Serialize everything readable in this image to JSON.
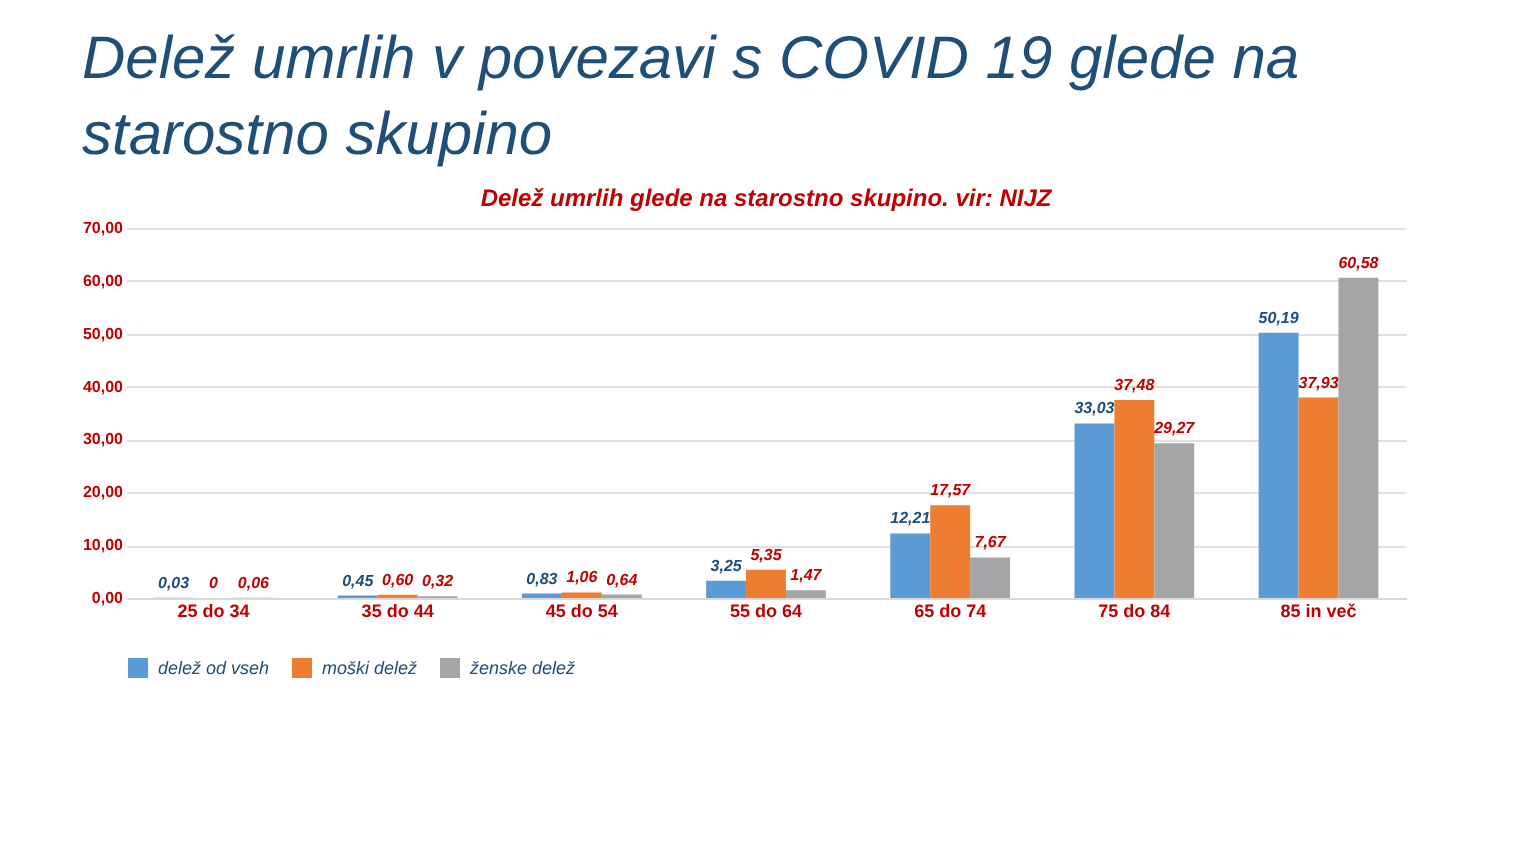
{
  "chart_data": {
    "type": "bar",
    "title": "Delež umrlih v povezavi s COVID 19 glede na starostno skupino",
    "subtitle": "Delež umrlih glede na starostno skupino. vir: NIJZ",
    "categories": [
      "25 do 34",
      "35 do 44",
      "45 do 54",
      "55 do 64",
      "65 do 74",
      "75 do 84",
      "85 in več"
    ],
    "series": [
      {
        "name": "delež od vseh",
        "color": "#5b9bd5",
        "values": [
          0.03,
          0.45,
          0.83,
          3.25,
          12.21,
          33.03,
          50.19
        ],
        "value_labels": [
          "0,03",
          "0,45",
          "0,83",
          "3,25",
          "12,21",
          "33,03",
          "50,19"
        ]
      },
      {
        "name": "moški delež",
        "color": "#ed7d31",
        "values": [
          0,
          0.6,
          1.06,
          5.35,
          17.57,
          37.48,
          37.93
        ],
        "value_labels": [
          "0",
          "0,60",
          "1,06",
          "5,35",
          "17,57",
          "37,48",
          "37,93"
        ]
      },
      {
        "name": "ženske delež",
        "color": "#a5a5a5",
        "values": [
          0.06,
          0.32,
          0.64,
          1.47,
          7.67,
          29.27,
          60.58
        ],
        "value_labels": [
          "0,06",
          "0,32",
          "0,64",
          "1,47",
          "7,67",
          "29,27",
          "60,58"
        ]
      }
    ],
    "ylim": [
      0,
      70
    ],
    "yticks": [
      {
        "value": 0,
        "label": "0,00"
      },
      {
        "value": 10,
        "label": "10,00"
      },
      {
        "value": 20,
        "label": "20,00"
      },
      {
        "value": 30,
        "label": "30,00"
      },
      {
        "value": 40,
        "label": "40,00"
      },
      {
        "value": 50,
        "label": "50,00"
      },
      {
        "value": 60,
        "label": "60,00"
      },
      {
        "value": 70,
        "label": "70,00"
      }
    ],
    "grid": "y",
    "legend": "bottom"
  }
}
